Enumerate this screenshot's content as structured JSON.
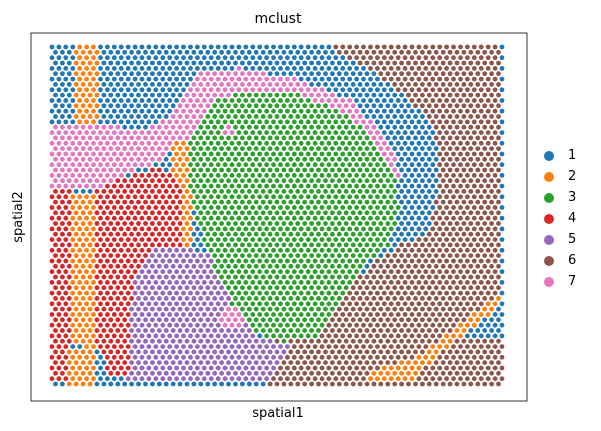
{
  "chart_data": {
    "type": "scatter",
    "title": "mclust",
    "xlabel": "spatial1",
    "ylabel": "spatial2",
    "grid": false,
    "legend_position": "right",
    "x_ticks": false,
    "y_ticks": false,
    "grid_spec": {
      "columns": 66,
      "rows": 64,
      "hex_offset": true
    },
    "categories": [
      {
        "label": "1",
        "color": "#1f77b4"
      },
      {
        "label": "2",
        "color": "#ff7f0e"
      },
      {
        "label": "3",
        "color": "#2ca02c"
      },
      {
        "label": "4",
        "color": "#d62728"
      },
      {
        "label": "5",
        "color": "#9467bd"
      },
      {
        "label": "6",
        "color": "#8c564b"
      },
      {
        "label": "7",
        "color": "#e377c2"
      }
    ]
  }
}
